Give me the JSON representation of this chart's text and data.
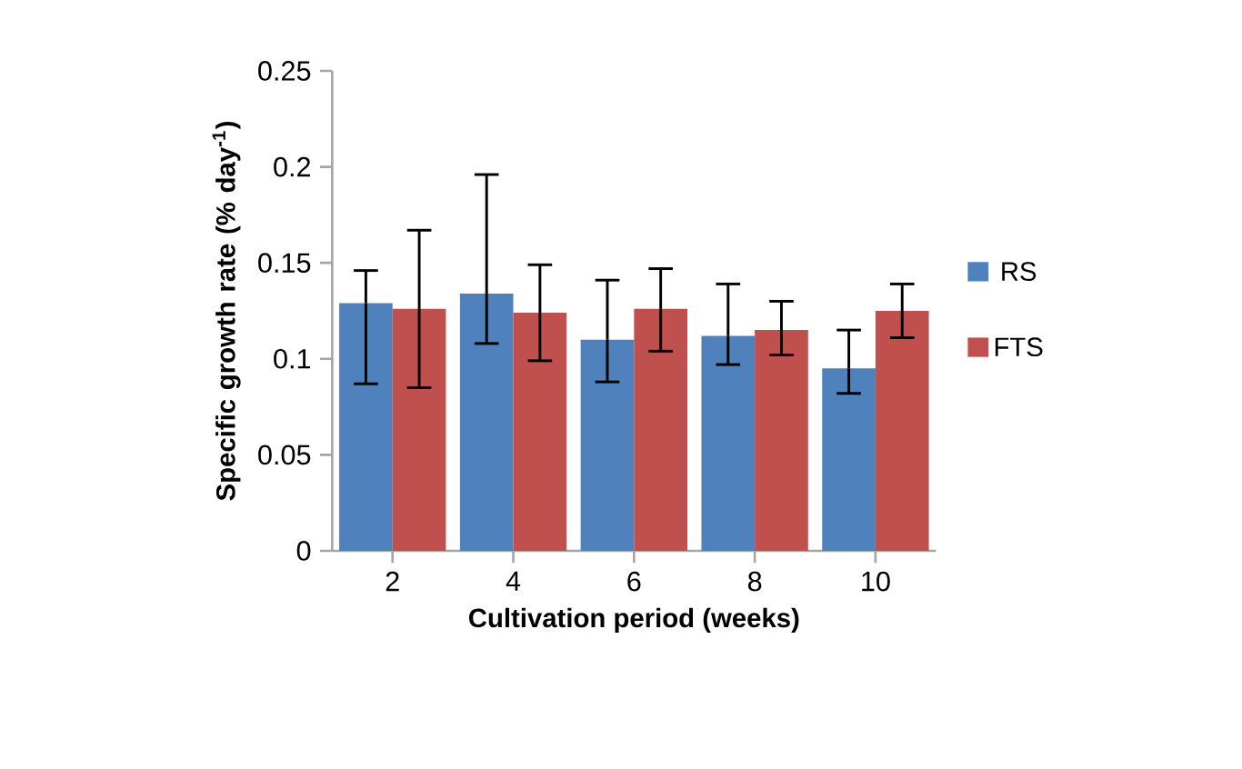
{
  "chart_data": {
    "type": "bar",
    "xlabel": "Cultivation period (weeks)",
    "ylabel": "Specific growth rate (% day$^{-1}$)",
    "categories": [
      "2",
      "4",
      "6",
      "8",
      "10"
    ],
    "series": [
      {
        "name": "RS",
        "color": "#4f81bd",
        "values": [
          0.129,
          0.134,
          0.11,
          0.112,
          0.095
        ],
        "errors": [
          [
            0.087,
            0.146
          ],
          [
            0.108,
            0.196
          ],
          [
            0.088,
            0.141
          ],
          [
            0.097,
            0.139
          ],
          [
            0.082,
            0.115
          ]
        ]
      },
      {
        "name": "FTS",
        "color": "#c0504d",
        "values": [
          0.126,
          0.124,
          0.126,
          0.115,
          0.125
        ],
        "errors": [
          [
            0.085,
            0.167
          ],
          [
            0.099,
            0.149
          ],
          [
            0.104,
            0.147
          ],
          [
            0.102,
            0.13
          ],
          [
            0.111,
            0.139
          ]
        ]
      }
    ],
    "ylim": [
      0,
      0.25
    ],
    "yticks": [
      0,
      0.05,
      0.1,
      0.15,
      0.2,
      0.25
    ],
    "legend": "right"
  }
}
